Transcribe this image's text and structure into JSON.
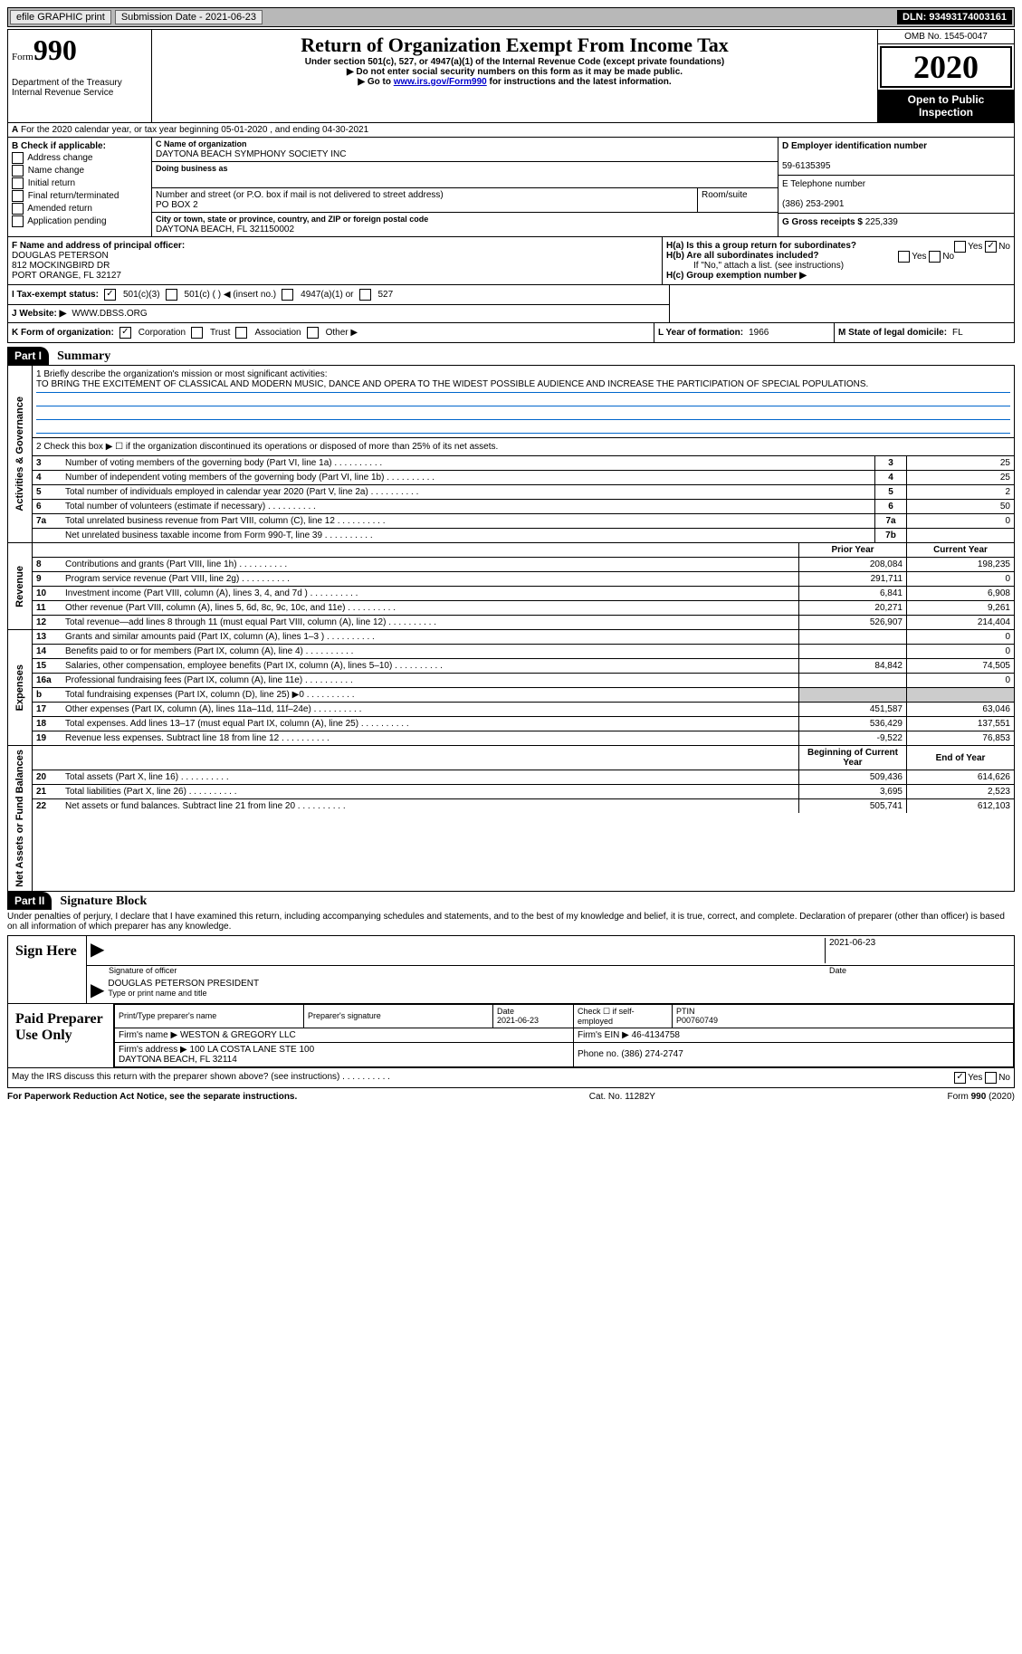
{
  "topbar": {
    "efile": "efile GRAPHIC print",
    "submission_label": "Submission Date - 2021-06-23",
    "dln_label": "DLN: 93493174003161"
  },
  "header": {
    "form_label": "Form",
    "form_num": "990",
    "dept": "Department of the Treasury\nInternal Revenue Service",
    "title": "Return of Organization Exempt From Income Tax",
    "sub1": "Under section 501(c), 527, or 4947(a)(1) of the Internal Revenue Code (except private foundations)",
    "sub2": "▶ Do not enter social security numbers on this form as it may be made public.",
    "sub3_pre": "▶ Go to ",
    "sub3_link": "www.irs.gov/Form990",
    "sub3_post": " for instructions and the latest information.",
    "omb": "OMB No. 1545-0047",
    "year": "2020",
    "open": "Open to Public Inspection"
  },
  "sectionA": "For the 2020 calendar year, or tax year beginning 05-01-2020    , and ending 04-30-2021",
  "colB": {
    "label": "B Check if applicable:",
    "opts": [
      "Address change",
      "Name change",
      "Initial return",
      "Final return/terminated",
      "Amended return",
      "Application pending"
    ]
  },
  "org": {
    "name_lbl": "C Name of organization",
    "name": "DAYTONA BEACH SYMPHONY SOCIETY INC",
    "dba_lbl": "Doing business as",
    "dba": "",
    "addr_lbl": "Number and street (or P.O. box if mail is not delivered to street address)",
    "room_lbl": "Room/suite",
    "addr": "PO BOX 2",
    "city_lbl": "City or town, state or province, country, and ZIP or foreign postal code",
    "city": "DAYTONA BEACH, FL  321150002"
  },
  "right": {
    "ein_lbl": "D Employer identification number",
    "ein": "59-6135395",
    "phone_lbl": "E Telephone number",
    "phone": "(386) 253-2901",
    "gross_lbl": "G Gross receipts $ ",
    "gross": "225,339"
  },
  "fh": {
    "f_lbl": "F Name and address of principal officer:",
    "f_name": "DOUGLAS PETERSON",
    "f_addr1": "812 MOCKINGBIRD DR",
    "f_addr2": "PORT ORANGE, FL  32127",
    "ha_lbl": "H(a)  Is this a group return for subordinates?",
    "hb_lbl": "H(b)  Are all subordinates included?",
    "hb_note": "If \"No,\" attach a list. (see instructions)",
    "hc_lbl": "H(c)  Group exemption number ▶"
  },
  "rowI": {
    "lbl": "I   Tax-exempt status:",
    "o1": "501(c)(3)",
    "o2": "501(c) (   ) ◀ (insert no.)",
    "o3": "4947(a)(1) or",
    "o4": "527"
  },
  "rowJ": {
    "lbl": "J   Website: ▶",
    "val": "WWW.DBSS.ORG"
  },
  "rowK": {
    "lbl": "K Form of organization:",
    "o1": "Corporation",
    "o2": "Trust",
    "o3": "Association",
    "o4": "Other ▶"
  },
  "rowL": {
    "year_lbl": "L Year of formation: ",
    "year": "1966",
    "state_lbl": "M State of legal domicile: ",
    "state": "FL"
  },
  "part1": {
    "label": "Part I",
    "title": "Summary",
    "line1_lbl": "1   Briefly describe the organization's mission or most significant activities:",
    "mission": "TO BRING THE EXCITEMENT OF CLASSICAL AND MODERN MUSIC, DANCE AND OPERA TO THE WIDEST POSSIBLE AUDIENCE AND INCREASE THE PARTICIPATION OF SPECIAL POPULATIONS.",
    "line2": "2   Check this box ▶ ☐  if the organization discontinued its operations or disposed of more than 25% of its net assets.",
    "sides": {
      "gov": "Activities & Governance",
      "rev": "Revenue",
      "exp": "Expenses",
      "net": "Net Assets or Fund Balances"
    },
    "col_prior": "Prior Year",
    "col_current": "Current Year",
    "col_boy": "Beginning of Current Year",
    "col_eoy": "End of Year",
    "gov_lines": [
      {
        "n": "3",
        "t": "Number of voting members of the governing body (Part VI, line 1a)",
        "k": "3",
        "v": "25"
      },
      {
        "n": "4",
        "t": "Number of independent voting members of the governing body (Part VI, line 1b)",
        "k": "4",
        "v": "25"
      },
      {
        "n": "5",
        "t": "Total number of individuals employed in calendar year 2020 (Part V, line 2a)",
        "k": "5",
        "v": "2"
      },
      {
        "n": "6",
        "t": "Total number of volunteers (estimate if necessary)",
        "k": "6",
        "v": "50"
      },
      {
        "n": "7a",
        "t": "Total unrelated business revenue from Part VIII, column (C), line 12",
        "k": "7a",
        "v": "0"
      },
      {
        "n": "",
        "t": "Net unrelated business taxable income from Form 990-T, line 39",
        "k": "7b",
        "v": ""
      }
    ],
    "rev_lines": [
      {
        "n": "8",
        "t": "Contributions and grants (Part VIII, line 1h)",
        "p": "208,084",
        "c": "198,235"
      },
      {
        "n": "9",
        "t": "Program service revenue (Part VIII, line 2g)",
        "p": "291,711",
        "c": "0"
      },
      {
        "n": "10",
        "t": "Investment income (Part VIII, column (A), lines 3, 4, and 7d )",
        "p": "6,841",
        "c": "6,908"
      },
      {
        "n": "11",
        "t": "Other revenue (Part VIII, column (A), lines 5, 6d, 8c, 9c, 10c, and 11e)",
        "p": "20,271",
        "c": "9,261"
      },
      {
        "n": "12",
        "t": "Total revenue—add lines 8 through 11 (must equal Part VIII, column (A), line 12)",
        "p": "526,907",
        "c": "214,404"
      }
    ],
    "exp_lines": [
      {
        "n": "13",
        "t": "Grants and similar amounts paid (Part IX, column (A), lines 1–3 )",
        "p": "",
        "c": "0"
      },
      {
        "n": "14",
        "t": "Benefits paid to or for members (Part IX, column (A), line 4)",
        "p": "",
        "c": "0"
      },
      {
        "n": "15",
        "t": "Salaries, other compensation, employee benefits (Part IX, column (A), lines 5–10)",
        "p": "84,842",
        "c": "74,505"
      },
      {
        "n": "16a",
        "t": "Professional fundraising fees (Part IX, column (A), line 11e)",
        "p": "",
        "c": "0"
      },
      {
        "n": "b",
        "t": "Total fundraising expenses (Part IX, column (D), line 25) ▶0",
        "p": "GRAY",
        "c": "GRAY"
      },
      {
        "n": "17",
        "t": "Other expenses (Part IX, column (A), lines 11a–11d, 11f–24e)",
        "p": "451,587",
        "c": "63,046"
      },
      {
        "n": "18",
        "t": "Total expenses. Add lines 13–17 (must equal Part IX, column (A), line 25)",
        "p": "536,429",
        "c": "137,551"
      },
      {
        "n": "19",
        "t": "Revenue less expenses. Subtract line 18 from line 12",
        "p": "-9,522",
        "c": "76,853"
      }
    ],
    "net_lines": [
      {
        "n": "20",
        "t": "Total assets (Part X, line 16)",
        "p": "509,436",
        "c": "614,626"
      },
      {
        "n": "21",
        "t": "Total liabilities (Part X, line 26)",
        "p": "3,695",
        "c": "2,523"
      },
      {
        "n": "22",
        "t": "Net assets or fund balances. Subtract line 21 from line 20",
        "p": "505,741",
        "c": "612,103"
      }
    ]
  },
  "part2": {
    "label": "Part II",
    "title": "Signature Block",
    "decl": "Under penalties of perjury, I declare that I have examined this return, including accompanying schedules and statements, and to the best of my knowledge and belief, it is true, correct, and complete. Declaration of preparer (other than officer) is based on all information of which preparer has any knowledge.",
    "sign_here": "Sign Here",
    "sig_lbl": "Signature of officer",
    "sig_date": "2021-06-23",
    "date_lbl": "Date",
    "officer": "DOUGLAS PETERSON  PRESIDENT",
    "officer_lbl": "Type or print name and title",
    "paid": "Paid Preparer Use Only",
    "prep_name_lbl": "Print/Type preparer's name",
    "prep_sig_lbl": "Preparer's signature",
    "prep_date_lbl": "Date",
    "prep_date": "2021-06-23",
    "prep_check_lbl": "Check ☐ if self-employed",
    "ptin_lbl": "PTIN",
    "ptin": "P00760749",
    "firm_name_lbl": "Firm's name    ▶",
    "firm_name": "WESTON & GREGORY LLC",
    "firm_ein_lbl": "Firm's EIN ▶",
    "firm_ein": "46-4134758",
    "firm_addr_lbl": "Firm's address ▶",
    "firm_addr": "100 LA COSTA LANE STE 100\nDAYTONA BEACH, FL  32114",
    "firm_phone_lbl": "Phone no. ",
    "firm_phone": "(386) 274-2747",
    "discuss": "May the IRS discuss this return with the preparer shown above? (see instructions)",
    "yes": "Yes",
    "no": "No"
  },
  "footer": {
    "pra": "For Paperwork Reduction Act Notice, see the separate instructions.",
    "cat": "Cat. No. 11282Y",
    "form": "Form 990 (2020)"
  }
}
